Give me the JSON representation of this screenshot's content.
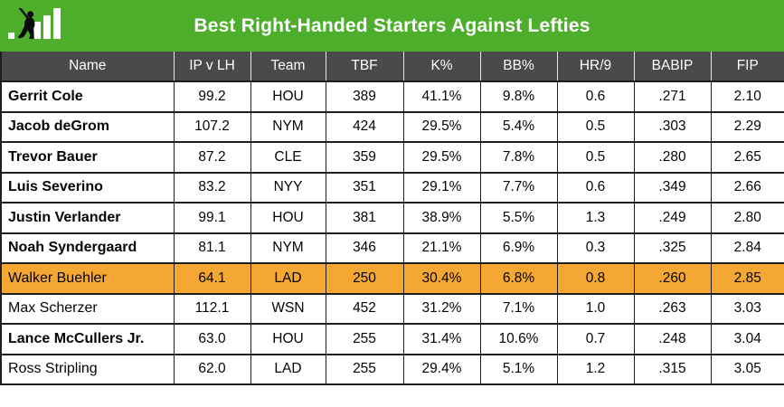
{
  "brand": {
    "logo_icon": "fangraphs-batter-logo",
    "logo_color_fg": "#0a0a0a",
    "logo_color_bars": "#ffffff"
  },
  "colors": {
    "banner_green": "#4cae2b",
    "header_gray": "#4a4a4a",
    "highlight_orange": "#f5a733",
    "border_dark": "#1f1f1f",
    "text": "#050505"
  },
  "chart_data": {
    "type": "table",
    "title": "Best Right-Handed Starters Against Lefties",
    "columns": [
      "Name",
      "IP v LH",
      "Team",
      "TBF",
      "K%",
      "BB%",
      "HR/9",
      "BABIP",
      "FIP"
    ],
    "rows": [
      {
        "cells": [
          "Gerrit Cole",
          "99.2",
          "HOU",
          "389",
          "41.1%",
          "9.8%",
          "0.6",
          ".271",
          "2.10"
        ],
        "bold_name": true,
        "highlighted": false
      },
      {
        "cells": [
          "Jacob deGrom",
          "107.2",
          "NYM",
          "424",
          "29.5%",
          "5.4%",
          "0.5",
          ".303",
          "2.29"
        ],
        "bold_name": true,
        "highlighted": false
      },
      {
        "cells": [
          "Trevor Bauer",
          "87.2",
          "CLE",
          "359",
          "29.5%",
          "7.8%",
          "0.5",
          ".280",
          "2.65"
        ],
        "bold_name": true,
        "highlighted": false
      },
      {
        "cells": [
          "Luis Severino",
          "83.2",
          "NYY",
          "351",
          "29.1%",
          "7.7%",
          "0.6",
          ".349",
          "2.66"
        ],
        "bold_name": true,
        "highlighted": false
      },
      {
        "cells": [
          "Justin Verlander",
          "99.1",
          "HOU",
          "381",
          "38.9%",
          "5.5%",
          "1.3",
          ".249",
          "2.80"
        ],
        "bold_name": true,
        "highlighted": false
      },
      {
        "cells": [
          "Noah Syndergaard",
          "81.1",
          "NYM",
          "346",
          "21.1%",
          "6.9%",
          "0.3",
          ".325",
          "2.84"
        ],
        "bold_name": true,
        "highlighted": false
      },
      {
        "cells": [
          "Walker Buehler",
          "64.1",
          "LAD",
          "250",
          "30.4%",
          "6.8%",
          "0.8",
          ".260",
          "2.85"
        ],
        "bold_name": false,
        "highlighted": true
      },
      {
        "cells": [
          "Max Scherzer",
          "112.1",
          "WSN",
          "452",
          "31.2%",
          "7.1%",
          "1.0",
          ".263",
          "3.03"
        ],
        "bold_name": false,
        "highlighted": false
      },
      {
        "cells": [
          "Lance McCullers Jr.",
          "63.0",
          "HOU",
          "255",
          "31.4%",
          "10.6%",
          "0.7",
          ".248",
          "3.04"
        ],
        "bold_name": true,
        "highlighted": false
      },
      {
        "cells": [
          "Ross Stripling",
          "62.0",
          "LAD",
          "255",
          "29.4%",
          "5.1%",
          "1.2",
          ".315",
          "3.05"
        ],
        "bold_name": false,
        "highlighted": false
      }
    ],
    "legend_position": "none",
    "grid": true,
    "highlighted_row_name": "Walker Buehler"
  }
}
